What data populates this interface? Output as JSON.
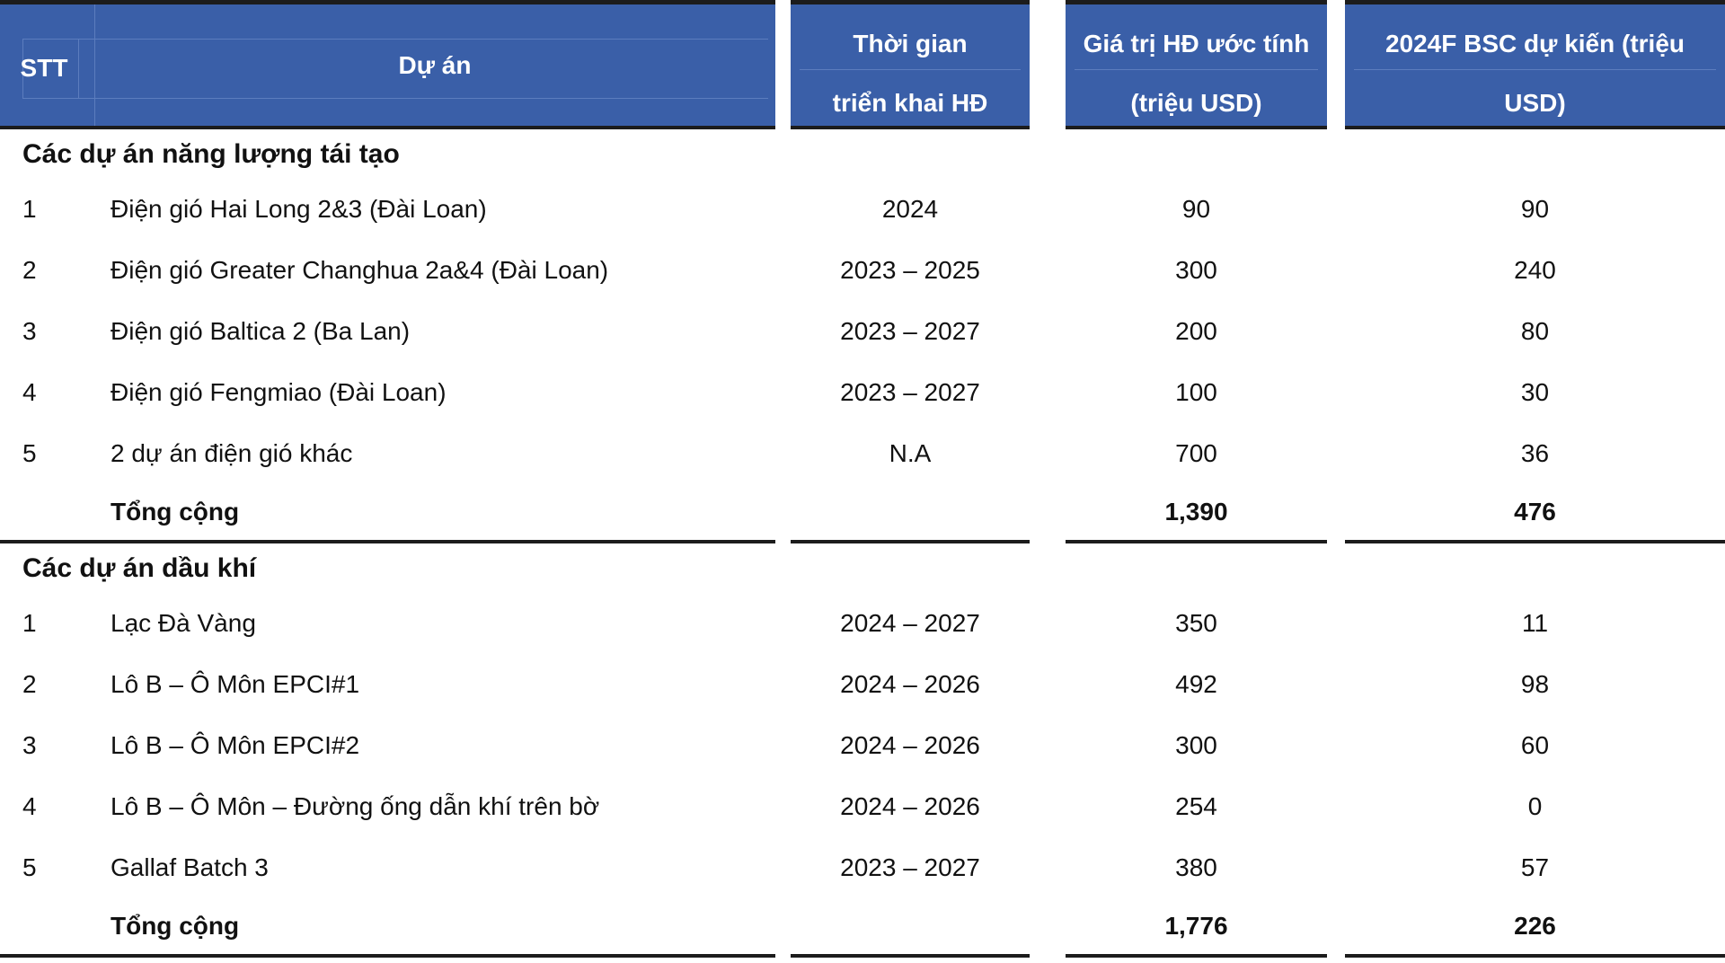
{
  "colors": {
    "header_bg": "#3A5FA8",
    "header_text": "#FFFFFF",
    "header_gridline": "#5C7DBE",
    "body_text": "#111111",
    "rule": "#1C1C1C",
    "background": "#FFFFFF"
  },
  "table": {
    "columns": [
      {
        "id": "stt",
        "label": "STT"
      },
      {
        "id": "project",
        "label": "Dự án"
      },
      {
        "id": "period",
        "line1": "Thời gian",
        "line2": "triển khai HĐ"
      },
      {
        "id": "value",
        "line1": "Giá trị HĐ ước tính",
        "line2": "(triệu USD)"
      },
      {
        "id": "bsc",
        "line1": "2024F BSC dự kiến (triệu",
        "line2": "USD)"
      }
    ],
    "sections": [
      {
        "title": "Các dự án năng lượng tái tạo",
        "rows": [
          {
            "stt": "1",
            "project": "Điện gió Hai Long 2&3 (Đài Loan)",
            "period": "2024",
            "value": "90",
            "bsc": "90"
          },
          {
            "stt": "2",
            "project": "Điện gió Greater Changhua 2a&4 (Đài Loan)",
            "period": "2023 – 2025",
            "value": "300",
            "bsc": "240"
          },
          {
            "stt": "3",
            "project": "Điện gió Baltica 2 (Ba Lan)",
            "period": "2023 – 2027",
            "value": "200",
            "bsc": "80"
          },
          {
            "stt": "4",
            "project": "Điện gió Fengmiao (Đài Loan)",
            "period": "2023 – 2027",
            "value": "100",
            "bsc": "30"
          },
          {
            "stt": "5",
            "project": "2 dự án điện gió khác",
            "period": "N.A",
            "value": "700",
            "bsc": "36"
          }
        ],
        "total": {
          "label": "Tổng cộng",
          "value": "1,390",
          "bsc": "476"
        }
      },
      {
        "title": "Các dự án dầu khí",
        "rows": [
          {
            "stt": "1",
            "project": "Lạc Đà Vàng",
            "period": "2024 – 2027",
            "value": "350",
            "bsc": "11"
          },
          {
            "stt": "2",
            "project": "Lô B – Ô Môn EPCI#1",
            "period": "2024 – 2026",
            "value": "492",
            "bsc": "98"
          },
          {
            "stt": "3",
            "project": "Lô B – Ô Môn EPCI#2",
            "period": "2024 – 2026",
            "value": "300",
            "bsc": "60"
          },
          {
            "stt": "4",
            "project": "Lô B – Ô Môn – Đường ống dẫn khí trên bờ",
            "period": "2024 – 2026",
            "value": "254",
            "bsc": "0"
          },
          {
            "stt": "5",
            "project": "Gallaf Batch 3",
            "period": "2023 – 2027",
            "value": "380",
            "bsc": "57"
          }
        ],
        "total": {
          "label": "Tổng cộng",
          "value": "1,776",
          "bsc": "226"
        }
      }
    ]
  }
}
